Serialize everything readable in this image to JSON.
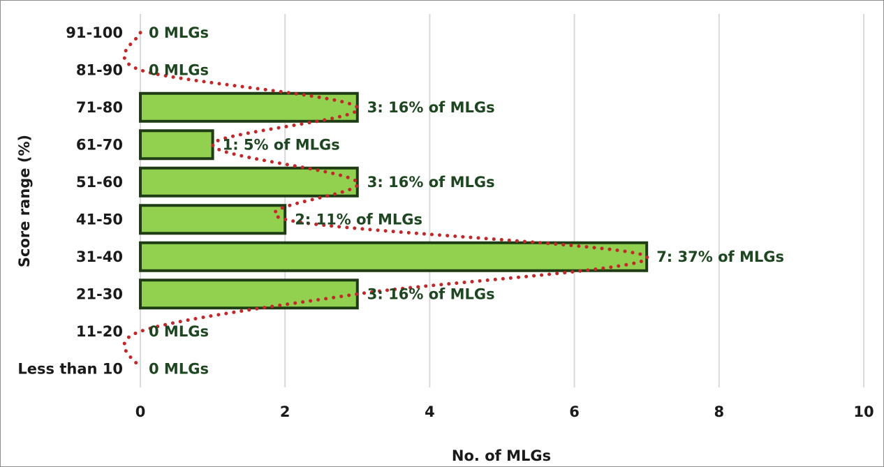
{
  "chart_data": {
    "type": "bar",
    "orientation": "horizontal",
    "title": "",
    "xlabel": "No. of MLGs",
    "ylabel": "Score range (%)",
    "xlim": [
      0,
      10
    ],
    "xticks": [
      "0",
      "2",
      "4",
      "6",
      "8",
      "10"
    ],
    "grid": "vertical",
    "legend": "none",
    "categories": [
      "91-100",
      "81-90",
      "71-80",
      "61-70",
      "51-60",
      "41-50",
      "31-40",
      "21-30",
      "11-20",
      "Less than 10"
    ],
    "values": [
      0,
      0,
      3,
      1,
      3,
      2,
      7,
      3,
      0,
      0
    ],
    "data_labels": [
      "0 MLGs",
      "0 MLGs",
      "3: 16% of MLGs",
      "1: 5% of MLGs",
      "3: 16% of MLGs",
      "2: 11% of MLGs",
      "7: 37% of MLGs",
      "3: 16% of MLGs",
      "0 MLGs",
      "0  MLGs"
    ],
    "trendline": {
      "style": "dotted",
      "color": "#c0282a",
      "type": "polynomial"
    },
    "colors": {
      "bar_fill": "#92d050",
      "bar_stroke": "#1e3d14",
      "label_text": "#1e4620",
      "grid": "#d9d9d9"
    }
  }
}
